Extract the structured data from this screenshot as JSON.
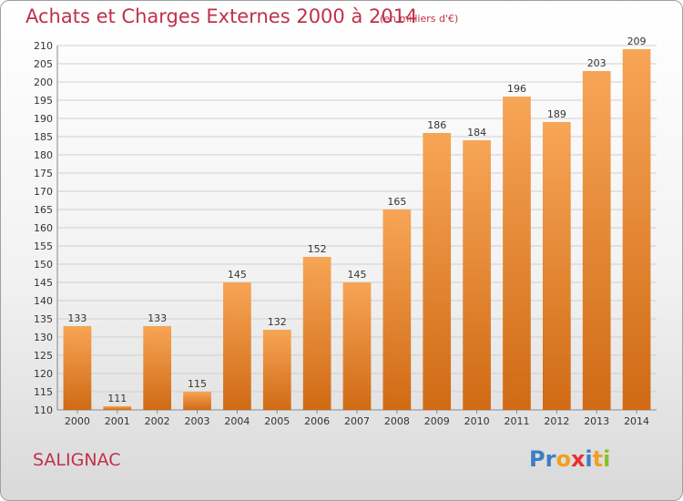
{
  "header": {
    "title": "Achats et Charges Externes 2000 à 2014",
    "unit": "(en milliers d'€)"
  },
  "footer": {
    "town": "SALIGNAC",
    "logo_letters": [
      {
        "char": "P",
        "color": "#3a7fc4"
      },
      {
        "char": "r",
        "color": "#3a7fc4"
      },
      {
        "char": "o",
        "color": "#f0a020"
      },
      {
        "char": "x",
        "color": "#e83030"
      },
      {
        "char": "i",
        "color": "#3a7fc4"
      },
      {
        "char": "t",
        "color": "#f0a020"
      },
      {
        "char": "i",
        "color": "#8ac02a"
      }
    ]
  },
  "colors": {
    "bar_light": "#f7a556",
    "bar_dark": "#d06a14",
    "grid": "#cfcfcf",
    "title": "#c0304a"
  },
  "chart_data": {
    "type": "bar",
    "title": "Achats et Charges Externes 2000 à 2014",
    "ylabel": "",
    "xlabel": "",
    "categories": [
      "2000",
      "2001",
      "2002",
      "2003",
      "2004",
      "2005",
      "2006",
      "2007",
      "2008",
      "2009",
      "2010",
      "2011",
      "2012",
      "2013",
      "2014"
    ],
    "values": [
      133,
      111,
      133,
      115,
      145,
      132,
      152,
      145,
      165,
      186,
      184,
      196,
      189,
      203,
      209
    ],
    "ylim": [
      110,
      210
    ],
    "ytick_step": 5,
    "grid": true,
    "data_labels": true
  }
}
